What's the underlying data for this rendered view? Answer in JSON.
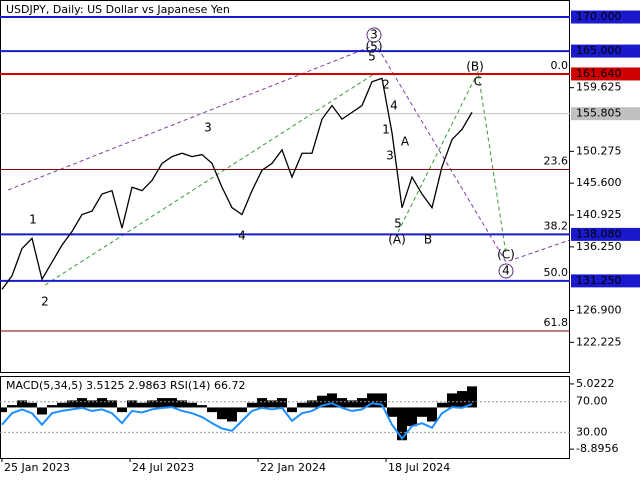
{
  "chart_data": [
    {
      "type": "line",
      "title": "USDJPY, Daily:  US Dollar vs Japanese Yen",
      "color": "#000000",
      "values": [
        130,
        132,
        136,
        137.5,
        131.5,
        134,
        136.5,
        138.5,
        141,
        141.5,
        144,
        144.5,
        139,
        145,
        144.5,
        146,
        148.5,
        149.5,
        150,
        149.5,
        149.8,
        148.5,
        145,
        142,
        141,
        144.5,
        147.5,
        148.5,
        150.5,
        146.5,
        150,
        150,
        155,
        157,
        155,
        156,
        157,
        160.5,
        161,
        153,
        142,
        146.5,
        144,
        142,
        148,
        152,
        153.5,
        156
      ],
      "xlim": [
        -0.2,
        56.8
      ],
      "xticks": [
        {
          "value": 0,
          "label": "25 Jan 2023"
        },
        {
          "value": 12.8,
          "label": "24 Jul 2023"
        },
        {
          "value": 25.6,
          "label": "22 Jan 2024"
        },
        {
          "value": 38.4,
          "label": "18 Jul 2024"
        }
      ],
      "ylim": [
        117.87,
        172.5
      ],
      "yticks": [
        {
          "value": 159.625,
          "label": "159.625"
        },
        {
          "value": 150.275,
          "label": "150.275"
        },
        {
          "value": 145.6,
          "label": "145.600"
        },
        {
          "value": 140.925,
          "label": "140.925"
        },
        {
          "value": 136.25,
          "label": "136.250"
        },
        {
          "value": 126.9,
          "label": "126.900"
        },
        {
          "value": 122.225,
          "label": "122.225"
        }
      ],
      "levels": [
        {
          "value": 170,
          "label": "170.000",
          "color": "#1a1acc"
        },
        {
          "value": 165,
          "label": "165.000",
          "color": "#1a1acc"
        },
        {
          "value": 161.64,
          "label": "161.640",
          "color": "#d00000"
        },
        {
          "value": 155.805,
          "label": "155.805",
          "color": "#c0c0c0"
        },
        {
          "value": 138.08,
          "label": "138.080",
          "color": "#1a1acc"
        },
        {
          "value": 131.25,
          "label": "131.250",
          "color": "#1a1acc"
        }
      ],
      "fib": {
        "color": "#800000",
        "levels": [
          {
            "value": 0,
            "label": "0.0"
          },
          23.6,
          38.2,
          {
            "value": 50,
            "label": "50.0"
          },
          61.8
        ],
        "prices": [
          161.64,
          147.6,
          138.08,
          131.25,
          123.9
        ]
      },
      "annotations": [
        {
          "text": "1",
          "color": "#a0342a"
        },
        {
          "text": "2",
          "color": "#a0342a"
        },
        {
          "text": "3",
          "color": "#a0342a"
        },
        {
          "text": "4",
          "color": "#a0342a"
        },
        {
          "text": "5",
          "color": "#a0342a"
        },
        {
          "text": "3",
          "color": "#5b2c83"
        },
        {
          "text": "(5)",
          "color": "#3a9a3a"
        },
        {
          "text": "1",
          "color": "#a0342a"
        },
        {
          "text": "2",
          "color": "#a0342a"
        },
        {
          "text": "3",
          "color": "#a0342a"
        },
        {
          "text": "4",
          "color": "#a0342a"
        },
        {
          "text": "5",
          "color": "#a0342a"
        },
        {
          "text": "(A)",
          "color": "#3a9a3a"
        },
        {
          "text": "A",
          "color": "#a0342a"
        },
        {
          "text": "B",
          "color": "#a0342a"
        },
        {
          "text": "(B)",
          "color": "#3a9a3a"
        },
        {
          "text": "C",
          "color": "#a0342a"
        },
        {
          "text": "(C)",
          "color": "#3a9a3a"
        },
        {
          "text": "4",
          "color": "#5b2c83"
        }
      ]
    },
    {
      "type": "bar",
      "title": "MACD(5,34,5) 3.5125 2.9863 RSI(14) 66.72",
      "color": "#000000",
      "values": [
        -1,
        0.5,
        1.5,
        1,
        -1.5,
        0.5,
        1,
        1.5,
        2,
        1.5,
        2,
        1.5,
        -1,
        1.5,
        1,
        1.5,
        2,
        2,
        1.5,
        1,
        0.5,
        -1,
        -2.5,
        -3,
        -1,
        1,
        2,
        1.5,
        2,
        -1,
        1,
        1.5,
        2.5,
        3,
        2,
        1.5,
        2,
        3,
        3,
        -2,
        -7,
        -4,
        -2,
        -3,
        1,
        3,
        3.5,
        4.5
      ],
      "ylim": [
        -10.79,
        6.5
      ],
      "yticks": [
        5.0222,
        -8.8956
      ],
      "rsi": {
        "color": "#1e90ff",
        "values": [
          40,
          55,
          60,
          55,
          40,
          55,
          58,
          60,
          62,
          58,
          60,
          55,
          42,
          58,
          56,
          60,
          62,
          63,
          58,
          55,
          50,
          42,
          35,
          32,
          45,
          58,
          62,
          60,
          62,
          45,
          55,
          58,
          65,
          68,
          62,
          58,
          60,
          68,
          66,
          40,
          22,
          38,
          42,
          36,
          55,
          63,
          62,
          67
        ],
        "ylim": [
          -3.5,
          102.3
        ],
        "yticks": [
          {
            "value": 70,
            "label": "70.00"
          },
          {
            "value": 30,
            "label": "30.00"
          }
        ]
      }
    }
  ]
}
